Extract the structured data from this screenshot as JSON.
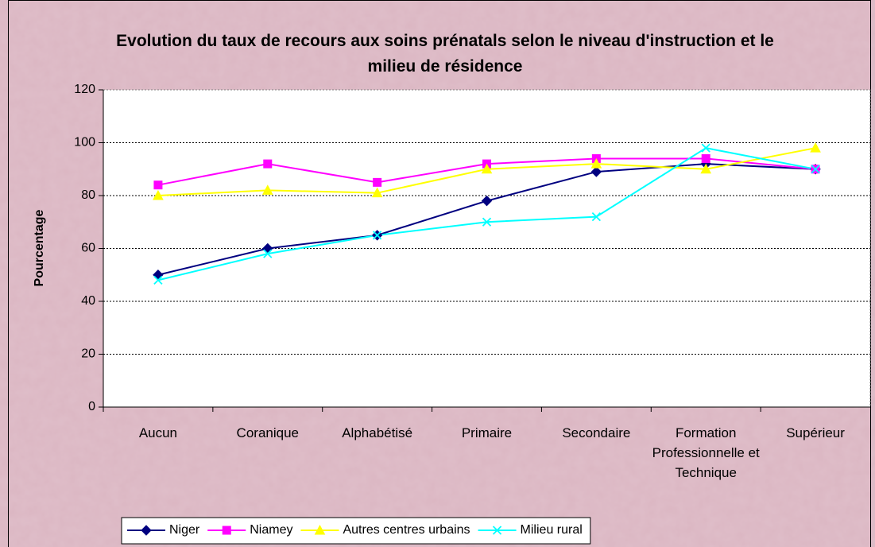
{
  "chart_data": {
    "type": "line",
    "title": "Evolution du taux de recours aux soins prénatals selon le niveau d'instruction et le milieu de résidence",
    "y_label": "Pourcentage",
    "categories": [
      "Aucun",
      "Coranique",
      "Alphabétisé",
      "Primaire",
      "Secondaire",
      "Formation Professionnelle et Technique",
      "Supérieur"
    ],
    "series": [
      {
        "name": "Niger",
        "color": "#000080",
        "marker": "diamond",
        "values": [
          50,
          60,
          65,
          78,
          89,
          92,
          90
        ]
      },
      {
        "name": "Niamey",
        "color": "#ff00ff",
        "marker": "square",
        "values": [
          84,
          92,
          85,
          92,
          94,
          94,
          90
        ]
      },
      {
        "name": "Autres centres urbains",
        "color": "#ffff00",
        "marker": "triangle",
        "values": [
          80,
          82,
          81,
          90,
          92,
          90,
          98
        ]
      },
      {
        "name": "Milieu rural",
        "color": "#00ffff",
        "marker": "x",
        "values": [
          48,
          58,
          65,
          70,
          72,
          98,
          90
        ]
      }
    ],
    "ylim": [
      0,
      120
    ],
    "yticks": [
      0,
      20,
      40,
      60,
      80,
      100,
      120
    ],
    "grid": true,
    "legend": "bottom"
  }
}
